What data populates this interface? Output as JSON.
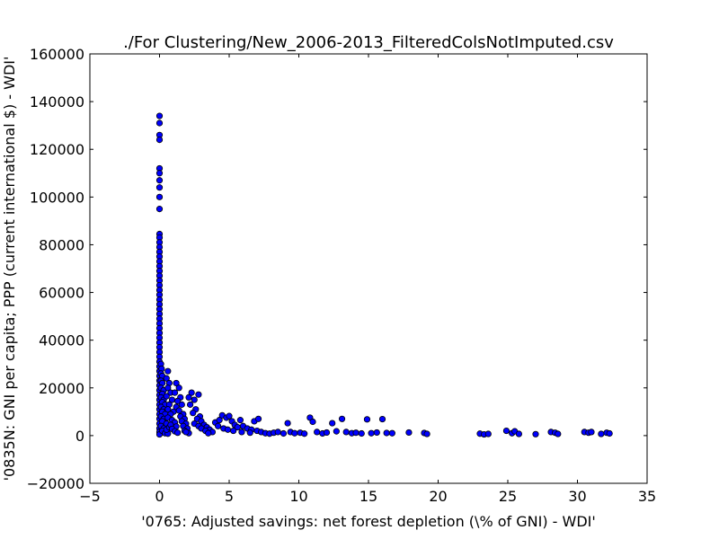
{
  "chart_data": {
    "type": "scatter",
    "title": "./For Clustering/New_2006-2013_FilteredColsNotImputed.csv",
    "xlabel": "'0765: Adjusted savings: net forest depletion  (\\% of GNI) - WDI'",
    "ylabel": "'0835N: GNI per capita; PPP  (current international $) - WDI'",
    "xlim": [
      -5,
      35
    ],
    "ylim": [
      -20000,
      160000
    ],
    "xticks": [
      -5,
      0,
      5,
      10,
      15,
      20,
      25,
      30,
      35
    ],
    "yticks": [
      -20000,
      0,
      20000,
      40000,
      60000,
      80000,
      100000,
      120000,
      140000,
      160000
    ],
    "xtick_labels": [
      "−5",
      "0",
      "5",
      "10",
      "15",
      "20",
      "25",
      "30",
      "35"
    ],
    "ytick_labels": [
      "−20000",
      "0",
      "20000",
      "40000",
      "60000",
      "80000",
      "100000",
      "120000",
      "140000",
      "160000"
    ],
    "grid": false,
    "marker_color": "#0000ff",
    "marker_edge_color": "#000000",
    "points": [
      [
        0.0,
        134000
      ],
      [
        0.0,
        131000
      ],
      [
        0.0,
        126000
      ],
      [
        0.0,
        124000
      ],
      [
        0.0,
        112000
      ],
      [
        0.0,
        110000
      ],
      [
        0.0,
        107000
      ],
      [
        0.0,
        104000
      ],
      [
        0.0,
        100000
      ],
      [
        0.0,
        95000
      ],
      [
        0.0,
        84500
      ],
      [
        0.0,
        83000
      ],
      [
        0.0,
        81000
      ],
      [
        0.0,
        79000
      ],
      [
        0.0,
        77000
      ],
      [
        0.0,
        75000
      ],
      [
        0.0,
        73000
      ],
      [
        0.0,
        71000
      ],
      [
        0.0,
        69000
      ],
      [
        0.0,
        67000
      ],
      [
        0.0,
        65000
      ],
      [
        0.0,
        63000
      ],
      [
        0.0,
        61000
      ],
      [
        0.0,
        59000
      ],
      [
        0.0,
        57000
      ],
      [
        0.0,
        55000
      ],
      [
        0.0,
        53000
      ],
      [
        0.0,
        51000
      ],
      [
        0.0,
        49000
      ],
      [
        0.0,
        47000
      ],
      [
        0.0,
        45000
      ],
      [
        0.0,
        43000
      ],
      [
        0.0,
        41000
      ],
      [
        0.0,
        39000
      ],
      [
        0.0,
        37000
      ],
      [
        0.0,
        35000
      ],
      [
        0.0,
        33000
      ],
      [
        0.0,
        31000
      ],
      [
        0.0,
        29000
      ],
      [
        0.0,
        27000
      ],
      [
        0.0,
        25000
      ],
      [
        0.0,
        23000
      ],
      [
        0.0,
        21000
      ],
      [
        0.0,
        19000
      ],
      [
        0.0,
        17000
      ],
      [
        0.0,
        15000
      ],
      [
        0.0,
        13000
      ],
      [
        0.0,
        11000
      ],
      [
        0.0,
        9000
      ],
      [
        0.0,
        7000
      ],
      [
        0.0,
        5000
      ],
      [
        0.0,
        3000
      ],
      [
        0.0,
        1500
      ],
      [
        0.0,
        500
      ],
      [
        0.1,
        30000
      ],
      [
        0.15,
        28000
      ],
      [
        0.1,
        26000
      ],
      [
        0.2,
        25000
      ],
      [
        0.1,
        23000
      ],
      [
        0.2,
        22000
      ],
      [
        0.1,
        20000
      ],
      [
        0.3,
        19000
      ],
      [
        0.2,
        17500
      ],
      [
        0.1,
        16000
      ],
      [
        0.3,
        15000
      ],
      [
        0.2,
        14000
      ],
      [
        0.4,
        13000
      ],
      [
        0.1,
        12000
      ],
      [
        0.3,
        11000
      ],
      [
        0.2,
        10000
      ],
      [
        0.4,
        9000
      ],
      [
        0.1,
        8000
      ],
      [
        0.3,
        7000
      ],
      [
        0.2,
        6000
      ],
      [
        0.5,
        5000
      ],
      [
        0.1,
        4000
      ],
      [
        0.3,
        3000
      ],
      [
        0.2,
        2000
      ],
      [
        0.4,
        1000
      ],
      [
        0.6,
        800
      ],
      [
        0.5,
        2500
      ],
      [
        0.7,
        3500
      ],
      [
        0.6,
        27000
      ],
      [
        0.5,
        24000
      ],
      [
        0.7,
        22000
      ],
      [
        0.6,
        20000
      ],
      [
        0.8,
        18000
      ],
      [
        0.5,
        16500
      ],
      [
        0.9,
        15000
      ],
      [
        0.7,
        13000
      ],
      [
        0.6,
        11000
      ],
      [
        1.0,
        10000
      ],
      [
        0.8,
        9000
      ],
      [
        0.6,
        7500
      ],
      [
        0.9,
        6500
      ],
      [
        1.1,
        5500
      ],
      [
        0.8,
        4500
      ],
      [
        1.2,
        3800
      ],
      [
        0.9,
        2800
      ],
      [
        1.1,
        1800
      ],
      [
        1.3,
        1200
      ],
      [
        1.2,
        22000
      ],
      [
        1.4,
        20000
      ],
      [
        1.1,
        18000
      ],
      [
        1.5,
        16000
      ],
      [
        1.3,
        14500
      ],
      [
        1.6,
        13000
      ],
      [
        1.2,
        12000
      ],
      [
        1.4,
        10500
      ],
      [
        1.7,
        9000
      ],
      [
        1.5,
        8000
      ],
      [
        1.8,
        7000
      ],
      [
        1.6,
        6000
      ],
      [
        1.9,
        5000
      ],
      [
        1.7,
        4000
      ],
      [
        2.0,
        3000
      ],
      [
        1.8,
        2000
      ],
      [
        2.1,
        1000
      ],
      [
        1.9,
        1500
      ],
      [
        2.3,
        18000
      ],
      [
        2.1,
        16000
      ],
      [
        2.5,
        15000
      ],
      [
        2.8,
        17200
      ],
      [
        2.2,
        13000
      ],
      [
        2.6,
        11000
      ],
      [
        2.4,
        9500
      ],
      [
        2.9,
        8000
      ],
      [
        2.7,
        7000
      ],
      [
        3.0,
        6000
      ],
      [
        2.5,
        5000
      ],
      [
        3.2,
        4500
      ],
      [
        2.8,
        4000
      ],
      [
        3.4,
        3500
      ],
      [
        3.0,
        3000
      ],
      [
        3.6,
        2500
      ],
      [
        3.3,
        2000
      ],
      [
        3.8,
        1500
      ],
      [
        3.5,
        1000
      ],
      [
        4.0,
        5500
      ],
      [
        4.3,
        6500
      ],
      [
        4.5,
        8500
      ],
      [
        4.8,
        7500
      ],
      [
        4.2,
        4000
      ],
      [
        4.6,
        3000
      ],
      [
        5.0,
        8200
      ],
      [
        5.2,
        6000
      ],
      [
        4.9,
        2500
      ],
      [
        5.4,
        4500
      ],
      [
        5.6,
        3500
      ],
      [
        5.3,
        2000
      ],
      [
        5.8,
        6500
      ],
      [
        6.0,
        4000
      ],
      [
        5.9,
        1500
      ],
      [
        6.3,
        3000
      ],
      [
        6.6,
        2500
      ],
      [
        6.8,
        6000
      ],
      [
        7.1,
        7000
      ],
      [
        6.5,
        1200
      ],
      [
        7.0,
        2000
      ],
      [
        7.3,
        1500
      ],
      [
        7.6,
        1000
      ],
      [
        7.9,
        800
      ],
      [
        8.2,
        1200
      ],
      [
        8.5,
        1500
      ],
      [
        8.9,
        900
      ],
      [
        9.2,
        5200
      ],
      [
        9.4,
        1500
      ],
      [
        9.7,
        1000
      ],
      [
        10.1,
        1200
      ],
      [
        10.4,
        800
      ],
      [
        10.8,
        7500
      ],
      [
        11.0,
        5800
      ],
      [
        11.3,
        1500
      ],
      [
        11.7,
        900
      ],
      [
        12.0,
        1300
      ],
      [
        12.4,
        5200
      ],
      [
        12.7,
        1800
      ],
      [
        13.1,
        7000
      ],
      [
        13.4,
        1500
      ],
      [
        13.8,
        1000
      ],
      [
        14.1,
        1200
      ],
      [
        14.5,
        900
      ],
      [
        14.9,
        6800
      ],
      [
        15.2,
        1000
      ],
      [
        15.6,
        1300
      ],
      [
        16.0,
        6900
      ],
      [
        16.3,
        1100
      ],
      [
        16.7,
        1000
      ],
      [
        17.9,
        1300
      ],
      [
        19.0,
        1100
      ],
      [
        19.2,
        700
      ],
      [
        23.0,
        800
      ],
      [
        23.3,
        500
      ],
      [
        23.6,
        700
      ],
      [
        24.9,
        2000
      ],
      [
        25.3,
        1000
      ],
      [
        25.5,
        1800
      ],
      [
        25.8,
        700
      ],
      [
        27.0,
        600
      ],
      [
        28.1,
        1500
      ],
      [
        28.4,
        1200
      ],
      [
        28.6,
        700
      ],
      [
        30.5,
        1500
      ],
      [
        30.8,
        1200
      ],
      [
        31.0,
        1500
      ],
      [
        31.7,
        700
      ],
      [
        32.1,
        1200
      ],
      [
        32.3,
        900
      ]
    ]
  }
}
